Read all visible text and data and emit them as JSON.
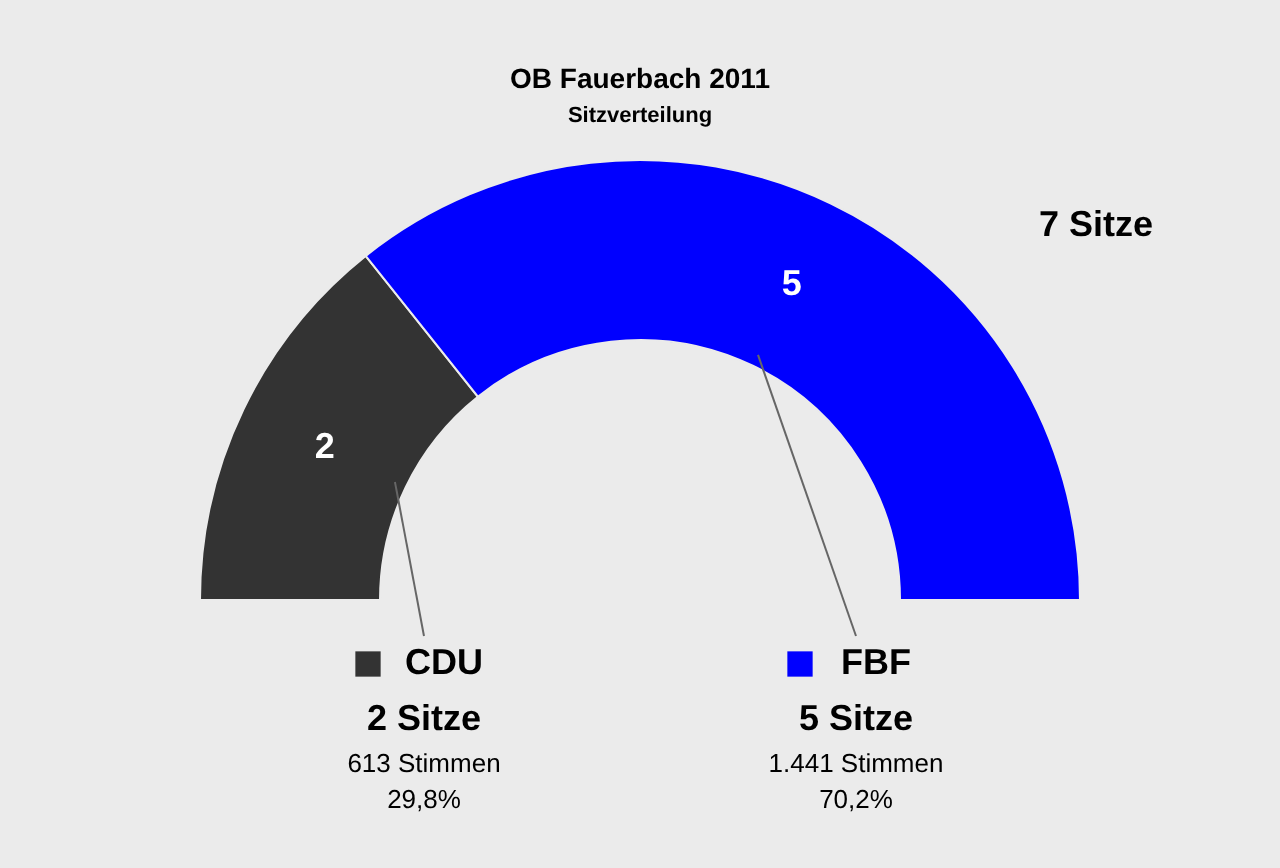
{
  "chart_data": {
    "type": "donut",
    "title": "OB Fauerbach 2011",
    "subtitle": "Sitzverteilung",
    "categories": [
      "CDU",
      "FBF"
    ],
    "values": [
      2,
      5
    ],
    "colors": [
      "#333333",
      "#0000ff"
    ],
    "data_labels": true,
    "legend": "bottom",
    "annotations": [
      "7 Sitze",
      "2 Sitze",
      "613 Stimmen",
      "29,8%",
      "5 Sitze",
      "1.441 Stimmen",
      "70,2%"
    ]
  }
}
